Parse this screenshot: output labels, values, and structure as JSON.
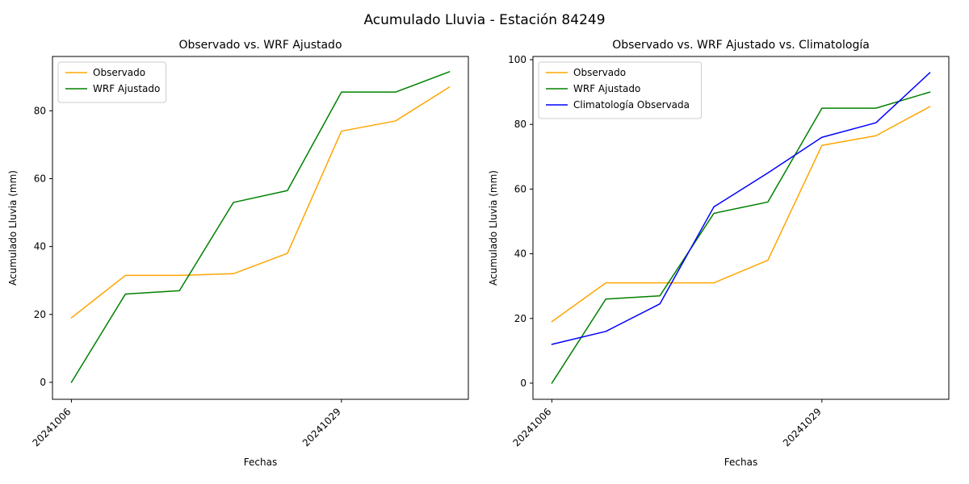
{
  "figure": {
    "title": "Acumulado Lluvia - Estación 84249"
  },
  "chart_data": [
    {
      "type": "line",
      "title": "Observado vs. WRF Ajustado",
      "xlabel": "Fechas",
      "ylabel": "Acumulado Lluvia (mm)",
      "ylim": [
        -5,
        96
      ],
      "yticks": [
        0,
        20,
        40,
        60,
        80
      ],
      "x_point_count": 8,
      "x_ticks": [
        {
          "index": 0,
          "label": "20241006"
        },
        {
          "index": 5,
          "label": "20241029"
        }
      ],
      "legend_position": "upper-left",
      "grid": false,
      "series": [
        {
          "name": "Observado",
          "color": "#ffa500",
          "values": [
            19,
            31.5,
            31.5,
            32,
            38,
            74,
            77,
            87
          ]
        },
        {
          "name": "WRF Ajustado",
          "color": "#008000",
          "values": [
            0,
            26,
            27,
            53,
            56.5,
            85.5,
            85.5,
            91.5
          ]
        }
      ]
    },
    {
      "type": "line",
      "title": "Observado vs. WRF Ajustado vs. Climatología",
      "xlabel": "Fechas",
      "ylabel": "Acumulado Lluvia (mm)",
      "ylim": [
        -5,
        101
      ],
      "yticks": [
        0,
        20,
        40,
        60,
        80,
        100
      ],
      "x_point_count": 8,
      "x_ticks": [
        {
          "index": 0,
          "label": "20241006"
        },
        {
          "index": 5,
          "label": "20241029"
        }
      ],
      "legend_position": "upper-left",
      "grid": false,
      "series": [
        {
          "name": "Observado",
          "color": "#ffa500",
          "values": [
            19,
            31,
            31,
            31,
            38,
            73.5,
            76.5,
            85.5
          ]
        },
        {
          "name": "WRF Ajustado",
          "color": "#008000",
          "values": [
            0,
            26,
            27,
            52.5,
            56,
            85,
            85,
            90
          ]
        },
        {
          "name": "Climatología Observada",
          "color": "#0000ff",
          "values": [
            12,
            16,
            24.5,
            54.5,
            65,
            76,
            80.5,
            96
          ]
        }
      ]
    }
  ]
}
